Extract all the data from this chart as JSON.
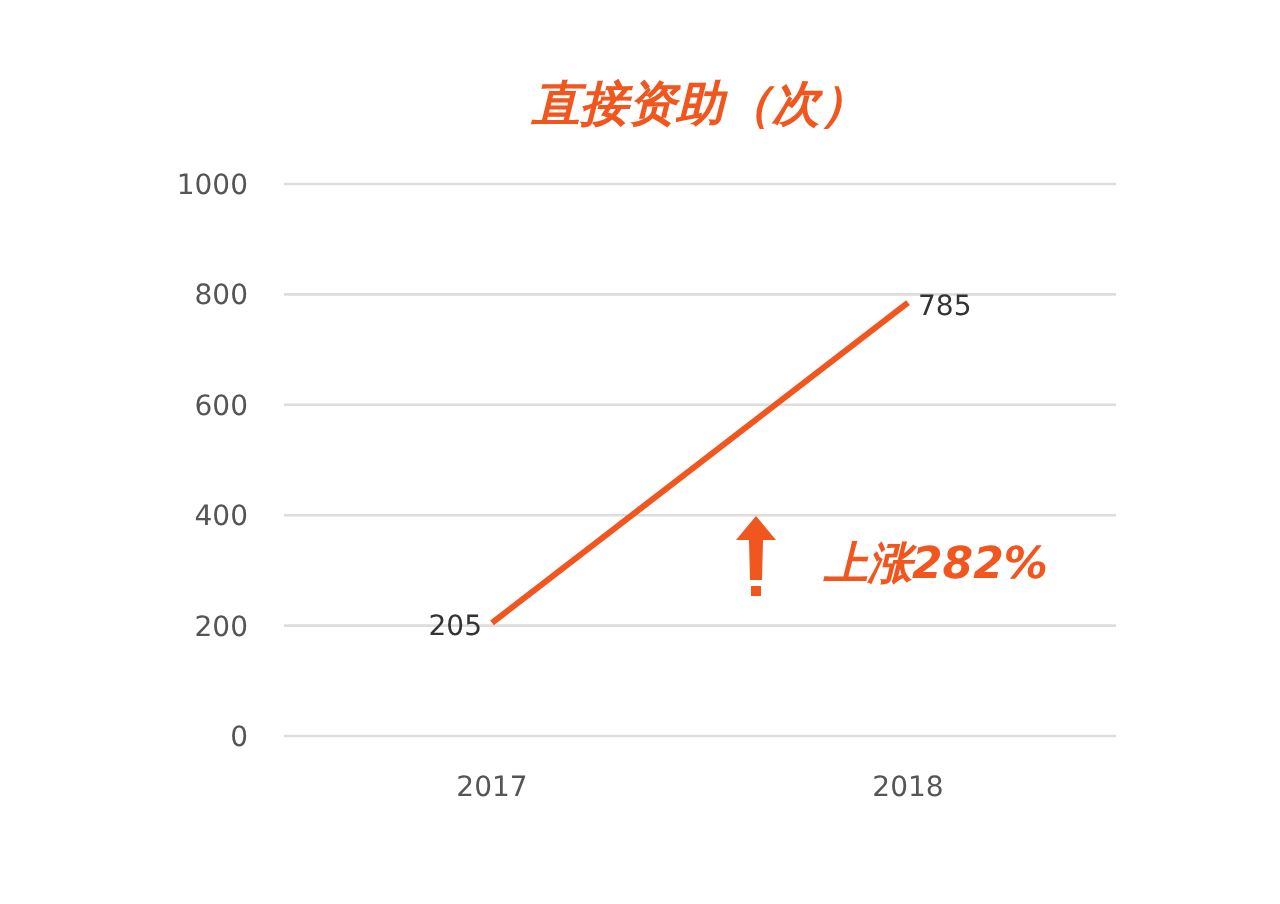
{
  "chart_data": {
    "type": "line",
    "title": "直接资助（次）",
    "categories": [
      "2017",
      "2018"
    ],
    "series": [
      {
        "color": "#f0561d",
        "values": [
          205,
          785
        ]
      }
    ],
    "ylim": [
      0,
      1000
    ],
    "yticks": [
      0,
      200,
      400,
      600,
      800,
      1000
    ],
    "grid": "y",
    "data_labels": true,
    "marker": "none",
    "line_style": "solid",
    "annotations": [
      "上涨282%"
    ]
  }
}
